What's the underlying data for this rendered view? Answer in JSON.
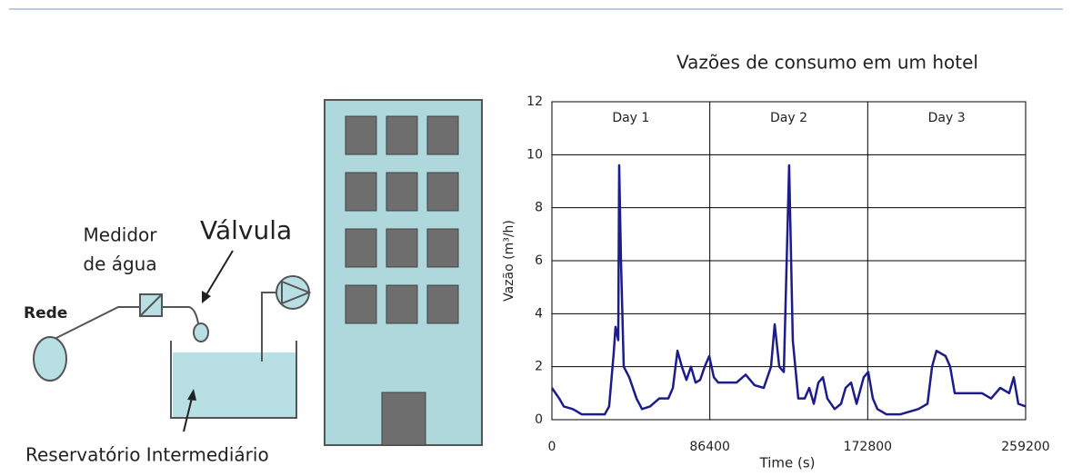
{
  "diagram": {
    "rede": "Rede",
    "medidor_line1": "Medidor",
    "medidor_line2": "de água",
    "valvula": "Válvula",
    "reservatorio": "Reservatório Intermediário"
  },
  "chart_data": {
    "type": "line",
    "title": "Vazões de consumo em um hotel",
    "xlabel": "Time (s)",
    "ylabel": "Vazão (m³/h)",
    "annotations": [
      "Day 1",
      "Day 2",
      "Day 3"
    ],
    "xlim": [
      0,
      259200
    ],
    "xticks": [
      0,
      86400,
      172800,
      259200
    ],
    "ylim": [
      0,
      12
    ],
    "yticks": [
      0,
      2,
      4,
      6,
      8,
      10,
      12
    ],
    "grid": true,
    "series": [
      {
        "color": "#1c1c8a",
        "x": [
          0,
          4000,
          6500,
          11400,
          16400,
          28900,
          31300,
          33800,
          34800,
          36300,
          36800,
          37800,
          39300,
          42300,
          46300,
          49300,
          53700,
          58700,
          63700,
          66200,
          68700,
          71100,
          73600,
          76100,
          78600,
          81100,
          83600,
          86100,
          88600,
          91000,
          96000,
          101000,
          106000,
          110900,
          115900,
          119900,
          121900,
          124400,
          126900,
          129800,
          131800,
          134800,
          138300,
          140800,
          143300,
          145800,
          148300,
          150700,
          154700,
          158200,
          160700,
          163700,
          166700,
          170600,
          173100,
          175600,
          178100,
          183100,
          190500,
          200500,
          205500,
          208000,
          210400,
          215400,
          217900,
          220400,
          235300,
          240300,
          245300,
          250200,
          252700,
          255200,
          259200
        ],
        "values": [
          1.2,
          0.8,
          0.5,
          0.4,
          0.2,
          0.2,
          0.5,
          2.5,
          3.5,
          3.0,
          9.6,
          6.0,
          2.0,
          1.6,
          0.8,
          0.4,
          0.5,
          0.8,
          0.8,
          1.2,
          2.6,
          2.0,
          1.5,
          2.0,
          1.4,
          1.5,
          2.0,
          2.4,
          1.6,
          1.4,
          1.4,
          1.4,
          1.7,
          1.3,
          1.2,
          2.0,
          3.6,
          2.0,
          1.8,
          9.6,
          3.0,
          0.8,
          0.8,
          1.2,
          0.6,
          1.4,
          1.6,
          0.8,
          0.4,
          0.6,
          1.2,
          1.4,
          0.6,
          1.6,
          1.8,
          0.8,
          0.4,
          0.2,
          0.2,
          0.4,
          0.6,
          2.0,
          2.6,
          2.4,
          2.0,
          1.0,
          1.0,
          0.8,
          1.2,
          1.0,
          1.6,
          0.6,
          0.5
        ]
      }
    ]
  }
}
